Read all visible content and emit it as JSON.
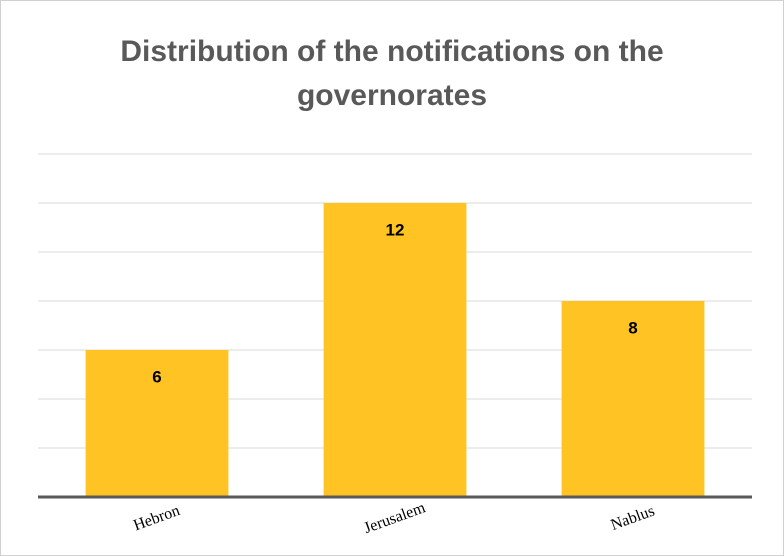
{
  "chart_data": {
    "type": "bar",
    "title": "Distribution of the notifications on the governorates",
    "categories": [
      "Hebron",
      "Jerusalem",
      "Nablus"
    ],
    "values": [
      6,
      12,
      8
    ],
    "color": "#ffc423",
    "ylim": [
      0,
      14
    ],
    "yticks": [
      0,
      2,
      4,
      6,
      8,
      10,
      12,
      14
    ],
    "grid": true
  }
}
